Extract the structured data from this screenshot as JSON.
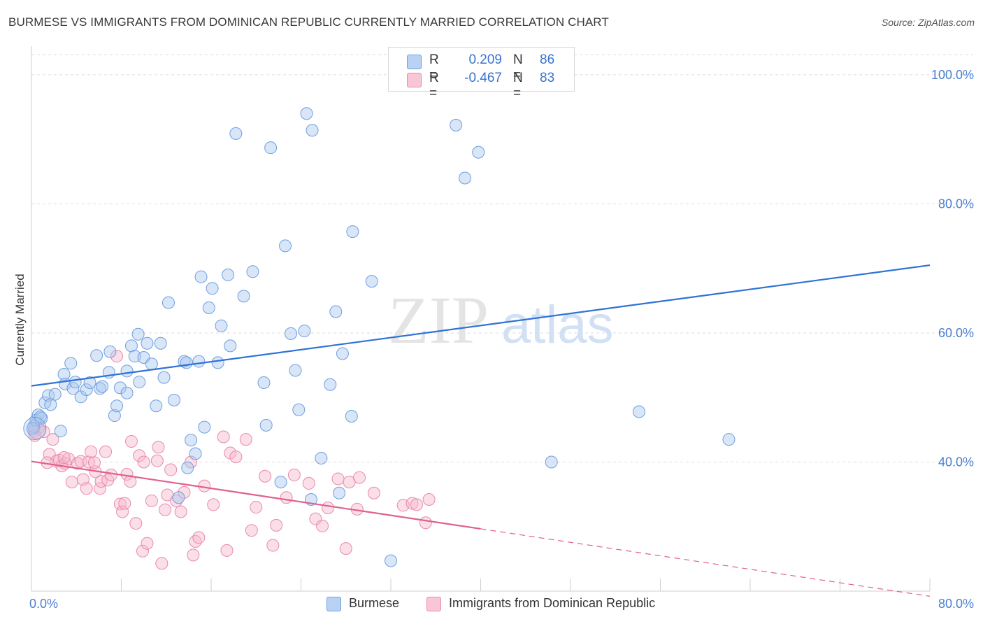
{
  "title": "BURMESE VS IMMIGRANTS FROM DOMINICAN REPUBLIC CURRENTLY MARRIED CORRELATION CHART",
  "source": "Source: ZipAtlas.com",
  "watermark": {
    "zip": "ZIP",
    "atlas": "atlas"
  },
  "legend": {
    "rows": [
      {
        "r_label": "R =",
        "r_value": "0.209",
        "n_label": "N =",
        "n_value": "86"
      },
      {
        "r_label": "R =",
        "r_value": "-0.467",
        "n_label": "N =",
        "n_value": "83"
      }
    ]
  },
  "bottom_legend": [
    "Burmese",
    "Immigrants from Dominican Republic"
  ],
  "colors": {
    "blue_fill": "#a9c8f0",
    "blue_stroke": "#6f9fdf",
    "blue_line": "#2f72d6",
    "pink_fill": "#f6b8cc",
    "pink_stroke": "#e98aa9",
    "pink_line": "#e0608d",
    "tick_text": "#4a7fcf",
    "grid": "#dddddd"
  },
  "chart_data": {
    "type": "scatter",
    "title": "BURMESE VS IMMIGRANTS FROM DOMINICAN REPUBLIC CURRENTLY MARRIED CORRELATION CHART",
    "xlabel": "",
    "ylabel": "Currently Married",
    "xlim": [
      0,
      80
    ],
    "ylim": [
      20,
      104
    ],
    "x_tick_labels": [
      "0.0%",
      "80.0%"
    ],
    "y_ticks": [
      40,
      60,
      80,
      100
    ],
    "y_tick_labels": [
      "40.0%",
      "60.0%",
      "80.0%",
      "100.0%"
    ],
    "grid": true,
    "legend_position": "top-center",
    "series": [
      {
        "name": "Burmese",
        "r": 0.209,
        "n": 86,
        "trend": {
          "x": [
            0,
            80
          ],
          "y": [
            51.8,
            70.5
          ],
          "dashed_from": null
        },
        "points": [
          [
            0.2,
            45.5
          ],
          [
            0.4,
            46.5
          ],
          [
            0.6,
            47.3
          ],
          [
            0.9,
            46.8
          ],
          [
            1.2,
            49.2
          ],
          [
            1.5,
            50.3
          ],
          [
            1.7,
            48.9
          ],
          [
            2.1,
            50.5
          ],
          [
            2.9,
            53.6
          ],
          [
            3.0,
            52.1
          ],
          [
            3.5,
            55.3
          ],
          [
            3.7,
            51.4
          ],
          [
            3.9,
            52.4
          ],
          [
            4.4,
            50.1
          ],
          [
            4.9,
            51.2
          ],
          [
            5.2,
            52.3
          ],
          [
            5.8,
            56.5
          ],
          [
            6.1,
            51.4
          ],
          [
            6.3,
            51.7
          ],
          [
            6.9,
            53.9
          ],
          [
            7.0,
            57.1
          ],
          [
            7.4,
            47.2
          ],
          [
            7.6,
            48.7
          ],
          [
            7.9,
            51.5
          ],
          [
            8.5,
            54.1
          ],
          [
            8.5,
            50.7
          ],
          [
            8.9,
            58.0
          ],
          [
            9.2,
            56.4
          ],
          [
            9.5,
            59.8
          ],
          [
            9.6,
            52.4
          ],
          [
            10.0,
            56.2
          ],
          [
            10.3,
            58.4
          ],
          [
            10.7,
            55.2
          ],
          [
            11.1,
            48.7
          ],
          [
            11.5,
            58.4
          ],
          [
            11.8,
            53.1
          ],
          [
            12.2,
            64.7
          ],
          [
            12.7,
            49.6
          ],
          [
            13.1,
            34.5
          ],
          [
            13.6,
            55.6
          ],
          [
            13.8,
            55.4
          ],
          [
            13.9,
            39.1
          ],
          [
            14.2,
            43.4
          ],
          [
            14.6,
            41.3
          ],
          [
            14.9,
            55.6
          ],
          [
            15.1,
            68.7
          ],
          [
            15.4,
            45.4
          ],
          [
            15.8,
            63.9
          ],
          [
            16.1,
            66.9
          ],
          [
            16.6,
            55.4
          ],
          [
            16.9,
            61.1
          ],
          [
            17.5,
            69.0
          ],
          [
            17.7,
            58.0
          ],
          [
            18.2,
            90.9
          ],
          [
            18.9,
            65.7
          ],
          [
            19.7,
            69.5
          ],
          [
            20.7,
            52.3
          ],
          [
            20.9,
            45.7
          ],
          [
            21.3,
            88.7
          ],
          [
            22.2,
            36.9
          ],
          [
            22.6,
            73.5
          ],
          [
            23.1,
            59.9
          ],
          [
            23.5,
            54.2
          ],
          [
            23.8,
            48.1
          ],
          [
            24.3,
            60.3
          ],
          [
            24.5,
            94.0
          ],
          [
            24.9,
            34.2
          ],
          [
            25.0,
            91.4
          ],
          [
            25.8,
            40.6
          ],
          [
            26.6,
            52.0
          ],
          [
            27.1,
            63.3
          ],
          [
            27.4,
            35.2
          ],
          [
            27.7,
            56.8
          ],
          [
            28.5,
            47.1
          ],
          [
            28.6,
            75.7
          ],
          [
            30.3,
            68.0
          ],
          [
            32.0,
            24.7
          ],
          [
            37.8,
            92.2
          ],
          [
            38.6,
            84.0
          ],
          [
            39.8,
            88.0
          ],
          [
            46.3,
            40.0
          ],
          [
            54.1,
            47.8
          ],
          [
            62.1,
            43.5
          ],
          [
            0.1,
            45.2
          ],
          [
            0.8,
            47.0
          ],
          [
            2.6,
            44.8
          ]
        ]
      },
      {
        "name": "Immigrants from Dominican Republic",
        "r": -0.467,
        "n": 83,
        "trend": {
          "x": [
            0,
            80
          ],
          "y": [
            40.1,
            19.2
          ],
          "solid_until_x": 40.0
        },
        "points": [
          [
            0.2,
            44.8
          ],
          [
            0.4,
            45.9
          ],
          [
            0.6,
            45.3
          ],
          [
            1.1,
            44.7
          ],
          [
            1.6,
            41.2
          ],
          [
            1.9,
            43.5
          ],
          [
            2.2,
            40.1
          ],
          [
            2.5,
            40.3
          ],
          [
            2.7,
            39.4
          ],
          [
            3.0,
            39.8
          ],
          [
            3.3,
            40.5
          ],
          [
            3.6,
            36.9
          ],
          [
            4.1,
            39.8
          ],
          [
            4.4,
            40.1
          ],
          [
            4.6,
            37.3
          ],
          [
            4.9,
            35.9
          ],
          [
            5.1,
            40.0
          ],
          [
            5.3,
            41.6
          ],
          [
            5.7,
            38.5
          ],
          [
            6.1,
            35.9
          ],
          [
            6.2,
            37.0
          ],
          [
            6.6,
            41.6
          ],
          [
            6.8,
            37.2
          ],
          [
            7.1,
            38.0
          ],
          [
            7.6,
            56.4
          ],
          [
            7.9,
            33.5
          ],
          [
            8.1,
            32.3
          ],
          [
            8.3,
            33.6
          ],
          [
            8.5,
            38.1
          ],
          [
            8.8,
            37.0
          ],
          [
            8.9,
            43.2
          ],
          [
            9.3,
            30.5
          ],
          [
            9.6,
            41.0
          ],
          [
            9.9,
            26.2
          ],
          [
            10.0,
            40.0
          ],
          [
            10.3,
            27.4
          ],
          [
            10.7,
            34.0
          ],
          [
            11.2,
            40.2
          ],
          [
            11.3,
            42.3
          ],
          [
            11.6,
            24.3
          ],
          [
            11.9,
            32.6
          ],
          [
            12.1,
            34.9
          ],
          [
            12.4,
            38.8
          ],
          [
            12.9,
            34.0
          ],
          [
            13.3,
            32.3
          ],
          [
            13.6,
            35.3
          ],
          [
            14.2,
            40.0
          ],
          [
            14.4,
            25.6
          ],
          [
            14.6,
            27.7
          ],
          [
            14.9,
            28.3
          ],
          [
            15.4,
            36.3
          ],
          [
            16.2,
            33.4
          ],
          [
            17.1,
            43.9
          ],
          [
            17.4,
            26.3
          ],
          [
            17.7,
            41.4
          ],
          [
            18.2,
            40.8
          ],
          [
            19.1,
            43.5
          ],
          [
            19.6,
            29.4
          ],
          [
            20.0,
            33.0
          ],
          [
            20.8,
            37.8
          ],
          [
            21.5,
            27.1
          ],
          [
            21.8,
            30.2
          ],
          [
            22.7,
            34.5
          ],
          [
            23.4,
            38.0
          ],
          [
            24.7,
            36.7
          ],
          [
            25.3,
            31.2
          ],
          [
            25.9,
            30.1
          ],
          [
            26.4,
            32.9
          ],
          [
            27.3,
            37.4
          ],
          [
            28.0,
            26.6
          ],
          [
            28.3,
            36.9
          ],
          [
            29.0,
            32.7
          ],
          [
            29.2,
            37.6
          ],
          [
            30.5,
            35.2
          ],
          [
            33.1,
            33.3
          ],
          [
            33.9,
            33.6
          ],
          [
            34.3,
            33.4
          ],
          [
            35.1,
            30.6
          ],
          [
            35.4,
            34.2
          ],
          [
            0.3,
            44.1
          ],
          [
            1.4,
            39.9
          ],
          [
            2.9,
            40.7
          ],
          [
            5.6,
            39.9
          ]
        ]
      }
    ]
  }
}
